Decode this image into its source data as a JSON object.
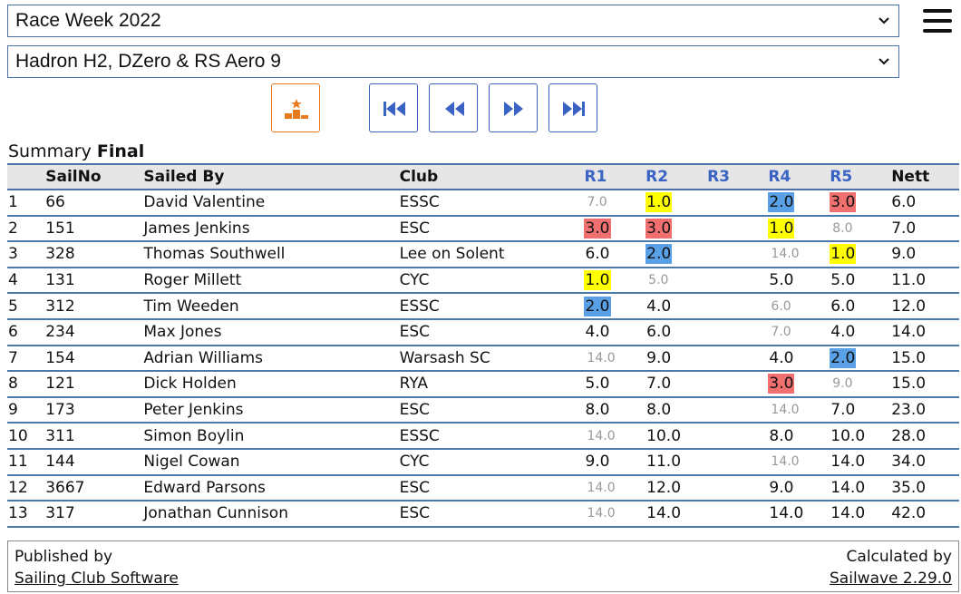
{
  "header": {
    "event_select": "Race Week 2022",
    "class_select": "Hadron H2, DZero & RS Aero 9"
  },
  "nav_icons": {
    "menu": "hamburger-menu-icon",
    "summary": "podium-icon",
    "first": "skip-to-start-icon",
    "previous": "rewind-icon",
    "next": "fast-forward-icon",
    "last": "skip-to-end-icon"
  },
  "summary": {
    "label": "Summary",
    "status": "Final"
  },
  "colors": {
    "first_place": "#ffff00",
    "second_place": "#5aa0e6",
    "third_place": "#f07070",
    "race_header": "#3a63c4",
    "summary_button": "#e87a1d"
  },
  "table": {
    "headers": [
      "",
      "SailNo",
      "Sailed By",
      "Club",
      "R1",
      "R2",
      "R3",
      "R4",
      "R5",
      "Nett"
    ],
    "rows": [
      {
        "pos": "1",
        "sail": "66",
        "name": "David Valentine",
        "club": "ESSC",
        "r1": "7.0",
        "r1s": "disc",
        "r2": "1.0",
        "r2s": "p1",
        "r3": "",
        "r3s": "",
        "r4": "2.0",
        "r4s": "p2",
        "r5": "3.0",
        "r5s": "p3",
        "nett": "6.0"
      },
      {
        "pos": "2",
        "sail": "151",
        "name": "James Jenkins",
        "club": "ESC",
        "r1": "3.0",
        "r1s": "p3",
        "r2": "3.0",
        "r2s": "p3",
        "r3": "",
        "r3s": "",
        "r4": "1.0",
        "r4s": "p1",
        "r5": "8.0",
        "r5s": "disc",
        "nett": "7.0"
      },
      {
        "pos": "3",
        "sail": "328",
        "name": "Thomas Southwell",
        "club": "Lee on Solent",
        "r1": "6.0",
        "r1s": "",
        "r2": "2.0",
        "r2s": "p2",
        "r3": "",
        "r3s": "",
        "r4": "14.0",
        "r4s": "disc",
        "r5": "1.0",
        "r5s": "p1",
        "nett": "9.0"
      },
      {
        "pos": "4",
        "sail": "131",
        "name": "Roger Millett",
        "club": "CYC",
        "r1": "1.0",
        "r1s": "p1",
        "r2": "5.0",
        "r2s": "disc",
        "r3": "",
        "r3s": "",
        "r4": "5.0",
        "r4s": "",
        "r5": "5.0",
        "r5s": "",
        "nett": "11.0"
      },
      {
        "pos": "5",
        "sail": "312",
        "name": "Tim Weeden",
        "club": "ESSC",
        "r1": "2.0",
        "r1s": "p2",
        "r2": "4.0",
        "r2s": "",
        "r3": "",
        "r3s": "",
        "r4": "6.0",
        "r4s": "disc",
        "r5": "6.0",
        "r5s": "",
        "nett": "12.0"
      },
      {
        "pos": "6",
        "sail": "234",
        "name": "Max Jones",
        "club": "ESC",
        "r1": "4.0",
        "r1s": "",
        "r2": "6.0",
        "r2s": "",
        "r3": "",
        "r3s": "",
        "r4": "7.0",
        "r4s": "disc",
        "r5": "4.0",
        "r5s": "",
        "nett": "14.0"
      },
      {
        "pos": "7",
        "sail": "154",
        "name": "Adrian Williams",
        "club": "Warsash SC",
        "r1": "14.0",
        "r1s": "disc",
        "r2": "9.0",
        "r2s": "",
        "r3": "",
        "r3s": "",
        "r4": "4.0",
        "r4s": "",
        "r5": "2.0",
        "r5s": "p2",
        "nett": "15.0"
      },
      {
        "pos": "8",
        "sail": "121",
        "name": "Dick Holden",
        "club": "RYA",
        "r1": "5.0",
        "r1s": "",
        "r2": "7.0",
        "r2s": "",
        "r3": "",
        "r3s": "",
        "r4": "3.0",
        "r4s": "p3",
        "r5": "9.0",
        "r5s": "disc",
        "nett": "15.0"
      },
      {
        "pos": "9",
        "sail": "173",
        "name": "Peter Jenkins",
        "club": "ESC",
        "r1": "8.0",
        "r1s": "",
        "r2": "8.0",
        "r2s": "",
        "r3": "",
        "r3s": "",
        "r4": "14.0",
        "r4s": "disc",
        "r5": "7.0",
        "r5s": "",
        "nett": "23.0"
      },
      {
        "pos": "10",
        "sail": "311",
        "name": "Simon Boylin",
        "club": "ESSC",
        "r1": "14.0",
        "r1s": "disc",
        "r2": "10.0",
        "r2s": "",
        "r3": "",
        "r3s": "",
        "r4": "8.0",
        "r4s": "",
        "r5": "10.0",
        "r5s": "",
        "nett": "28.0"
      },
      {
        "pos": "11",
        "sail": "144",
        "name": "Nigel Cowan",
        "club": "CYC",
        "r1": "9.0",
        "r1s": "",
        "r2": "11.0",
        "r2s": "",
        "r3": "",
        "r3s": "",
        "r4": "14.0",
        "r4s": "disc",
        "r5": "14.0",
        "r5s": "",
        "nett": "34.0"
      },
      {
        "pos": "12",
        "sail": "3667",
        "name": "Edward Parsons",
        "club": "ESC",
        "r1": "14.0",
        "r1s": "disc",
        "r2": "12.0",
        "r2s": "",
        "r3": "",
        "r3s": "",
        "r4": "9.0",
        "r4s": "",
        "r5": "14.0",
        "r5s": "",
        "nett": "35.0"
      },
      {
        "pos": "13",
        "sail": "317",
        "name": "Jonathan Cunnison",
        "club": "ESC",
        "r1": "14.0",
        "r1s": "disc",
        "r2": "14.0",
        "r2s": "",
        "r3": "",
        "r3s": "",
        "r4": "14.0",
        "r4s": "",
        "r5": "14.0",
        "r5s": "",
        "nett": "42.0"
      }
    ]
  },
  "footer": {
    "published_label": "Published by",
    "published_link": "Sailing Club Software",
    "calculated_label": "Calculated by",
    "calculated_link": "Sailwave 2.29.0"
  }
}
